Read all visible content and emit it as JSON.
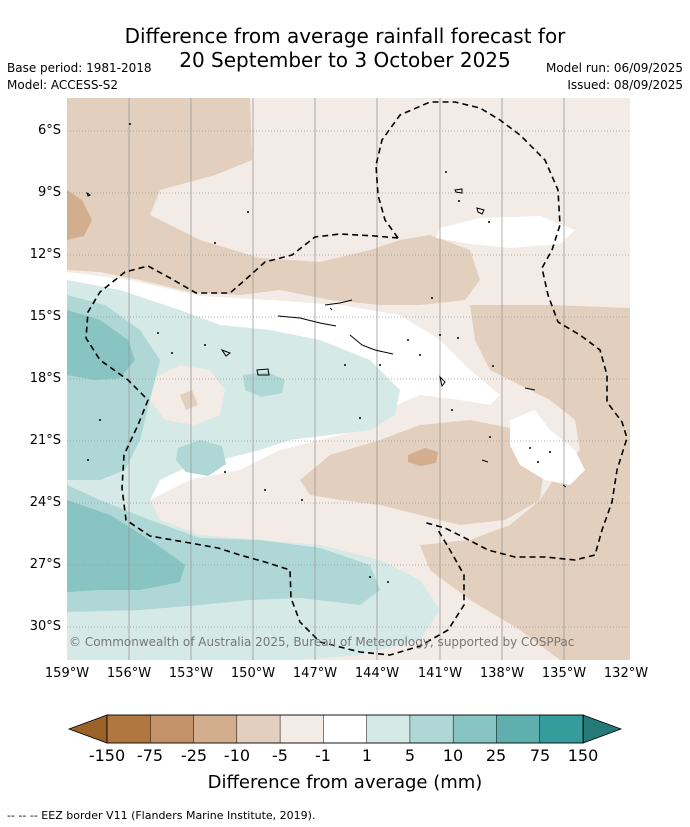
{
  "title_line1": "Difference from average rainfall forecast for",
  "title_line2": "20 September to 3 October 2025",
  "base_period": "Base period: 1981-2018",
  "model": "Model: ACCESS-S2",
  "model_run": "Model run: 06/09/2025",
  "issued": "Issued: 08/09/2025",
  "copyright": "© Commonwealth of Australia 2025, Bureau of Meteorology, supported by COSPPac",
  "lat_labels": [
    "6°S",
    "9°S",
    "12°S",
    "15°S",
    "18°S",
    "21°S",
    "24°S",
    "27°S",
    "30°S"
  ],
  "lon_labels": [
    "159°W",
    "156°W",
    "153°W",
    "150°W",
    "147°W",
    "144°W",
    "141°W",
    "138°W",
    "135°W",
    "132°W"
  ],
  "colorbar": {
    "title": "Difference from average (mm)",
    "ticks": [
      "-150",
      "-75",
      "-25",
      "-10",
      "-5",
      "-1",
      "1",
      "5",
      "10",
      "25",
      "75",
      "150"
    ],
    "colors": [
      "#b07840",
      "#c29268",
      "#d2ae8e",
      "#e3cfbd",
      "#f3ebe5",
      "#ffffff",
      "#d5e9e7",
      "#aed7d5",
      "#87c4c2",
      "#5fafae",
      "#349c9a"
    ],
    "under_color": "#9a6228",
    "over_color": "#257a78"
  },
  "footer": "-- -- -- EEZ border V11 (Flanders Marine Institute, 2019)."
}
